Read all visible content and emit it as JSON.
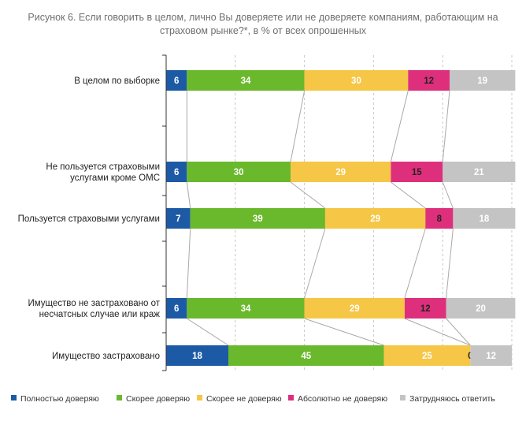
{
  "chart_data": {
    "type": "bar",
    "orientation": "horizontal",
    "stacked": true,
    "title": "Рисунок 6. Если говорить в целом, лично Вы доверяете или не доверяете компаниям, работающим на",
    "subtitle": "страховом рынке?*, в % от всех опрошенных",
    "xlim": [
      0,
      100
    ],
    "grid": "vertical dashed",
    "legend_position": "bottom",
    "categories": [
      "В целом по выборке",
      "Не пользуется страховыми услугами кроме ОМС",
      "Пользуется страховыми услугами",
      "Имущество не застраховано от несчатсных случае или краж",
      "Имущество застраховано"
    ],
    "series": [
      {
        "name": "Полностью доверяю",
        "color": "#1d5aa6",
        "values": [
          6,
          6,
          7,
          6,
          18
        ]
      },
      {
        "name": "Скорее доверяю",
        "color": "#6ab82b",
        "values": [
          34,
          30,
          39,
          34,
          45
        ]
      },
      {
        "name": "Скорее не доверяю",
        "color": "#f6c646",
        "values": [
          30,
          29,
          29,
          29,
          25
        ]
      },
      {
        "name": "Абсолютно не доверяю",
        "color": "#de2f7c",
        "values": [
          12,
          15,
          8,
          12,
          0
        ]
      },
      {
        "name": "Затрудняюсь ответить",
        "color": "#c4c4c4",
        "values": [
          19,
          21,
          18,
          20,
          12
        ]
      }
    ],
    "label_colors": [
      "#ffffff",
      "#ffffff",
      "#ffffff",
      "#222222",
      "#ffffff"
    ]
  }
}
